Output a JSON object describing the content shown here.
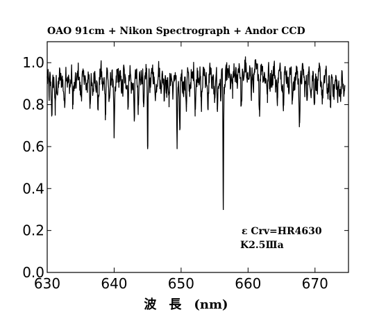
{
  "chart_data": {
    "type": "line",
    "title": "OAO 91cm + Nikon Spectrograph + Andor CCD",
    "xlabel": "波　長　(nm)",
    "ylabel": "",
    "xlim": [
      630,
      675
    ],
    "ylim": [
      0.0,
      1.1
    ],
    "x_ticks": [
      630,
      640,
      650,
      660,
      670
    ],
    "y_ticks": [
      0.0,
      0.2,
      0.4,
      0.6,
      0.8,
      1.0
    ],
    "x_tick_labels": [
      "630",
      "640",
      "650",
      "660",
      "670"
    ],
    "y_tick_labels": [
      "0.0",
      "0.2",
      "0.4",
      "0.6",
      "0.8",
      "1.0"
    ],
    "grid": false,
    "annotations": [
      "ε Crv=HR4630",
      "K2.5Ⅲa"
    ],
    "line_color": "#000000",
    "series": [
      {
        "continuum": [
          [
            630.0,
            0.93
          ],
          [
            631.0,
            0.9
          ],
          [
            632.0,
            0.91
          ],
          [
            633.0,
            0.92
          ],
          [
            634.0,
            0.91
          ],
          [
            635.0,
            0.92
          ],
          [
            636.0,
            0.91
          ],
          [
            637.0,
            0.9
          ],
          [
            638.0,
            0.92
          ],
          [
            639.0,
            0.92
          ],
          [
            640.0,
            0.91
          ],
          [
            641.0,
            0.93
          ],
          [
            642.0,
            0.92
          ],
          [
            643.0,
            0.91
          ],
          [
            644.0,
            0.92
          ],
          [
            645.0,
            0.93
          ],
          [
            646.0,
            0.92
          ],
          [
            647.0,
            0.93
          ],
          [
            648.0,
            0.92
          ],
          [
            649.0,
            0.91
          ],
          [
            650.0,
            0.9
          ],
          [
            651.0,
            0.91
          ],
          [
            652.0,
            0.93
          ],
          [
            653.0,
            0.92
          ],
          [
            654.0,
            0.93
          ],
          [
            655.0,
            0.92
          ],
          [
            656.0,
            0.93
          ],
          [
            657.0,
            0.93
          ],
          [
            658.0,
            0.95
          ],
          [
            659.0,
            0.94
          ],
          [
            660.0,
            0.95
          ],
          [
            661.0,
            0.95
          ],
          [
            662.0,
            0.95
          ],
          [
            663.0,
            0.94
          ],
          [
            664.0,
            0.93
          ],
          [
            665.0,
            0.94
          ],
          [
            666.0,
            0.93
          ],
          [
            667.0,
            0.92
          ],
          [
            668.0,
            0.93
          ],
          [
            669.0,
            0.92
          ],
          [
            670.0,
            0.91
          ],
          [
            671.0,
            0.92
          ],
          [
            672.0,
            0.9
          ],
          [
            673.0,
            0.9
          ],
          [
            674.0,
            0.89
          ],
          [
            674.5,
            0.88
          ]
        ],
        "absorption_lines": [
          {
            "x": 630.3,
            "y": 0.82
          },
          {
            "x": 630.7,
            "y": 0.8
          },
          {
            "x": 631.2,
            "y": 0.75
          },
          {
            "x": 632.6,
            "y": 0.8
          },
          {
            "x": 633.8,
            "y": 0.78
          },
          {
            "x": 635.1,
            "y": 0.85
          },
          {
            "x": 636.4,
            "y": 0.8
          },
          {
            "x": 637.6,
            "y": 0.79
          },
          {
            "x": 638.7,
            "y": 0.77
          },
          {
            "x": 639.3,
            "y": 0.83
          },
          {
            "x": 640.0,
            "y": 0.65
          },
          {
            "x": 641.3,
            "y": 0.84
          },
          {
            "x": 642.1,
            "y": 0.82
          },
          {
            "x": 643.0,
            "y": 0.73
          },
          {
            "x": 643.6,
            "y": 0.8
          },
          {
            "x": 644.4,
            "y": 0.79
          },
          {
            "x": 645.0,
            "y": 0.59
          },
          {
            "x": 646.2,
            "y": 0.85
          },
          {
            "x": 647.5,
            "y": 0.82
          },
          {
            "x": 648.2,
            "y": 0.79
          },
          {
            "x": 649.4,
            "y": 0.59
          },
          {
            "x": 649.8,
            "y": 0.68
          },
          {
            "x": 650.8,
            "y": 0.79
          },
          {
            "x": 652.1,
            "y": 0.81
          },
          {
            "x": 653.0,
            "y": 0.82
          },
          {
            "x": 654.0,
            "y": 0.78
          },
          {
            "x": 655.0,
            "y": 0.81
          },
          {
            "x": 655.4,
            "y": 0.78
          },
          {
            "x": 655.9,
            "y": 0.82
          },
          {
            "x": 656.3,
            "y": 0.3
          },
          {
            "x": 657.7,
            "y": 0.83
          },
          {
            "x": 659.0,
            "y": 0.8
          },
          {
            "x": 660.5,
            "y": 0.82
          },
          {
            "x": 661.7,
            "y": 0.8
          },
          {
            "x": 662.9,
            "y": 0.81
          },
          {
            "x": 664.4,
            "y": 0.83
          },
          {
            "x": 665.3,
            "y": 0.81
          },
          {
            "x": 666.6,
            "y": 0.82
          },
          {
            "x": 667.7,
            "y": 0.73
          },
          {
            "x": 668.8,
            "y": 0.82
          },
          {
            "x": 669.9,
            "y": 0.8
          },
          {
            "x": 671.1,
            "y": 0.83
          },
          {
            "x": 672.3,
            "y": 0.79
          },
          {
            "x": 673.4,
            "y": 0.81
          },
          {
            "x": 674.3,
            "y": 0.84
          }
        ]
      }
    ]
  }
}
